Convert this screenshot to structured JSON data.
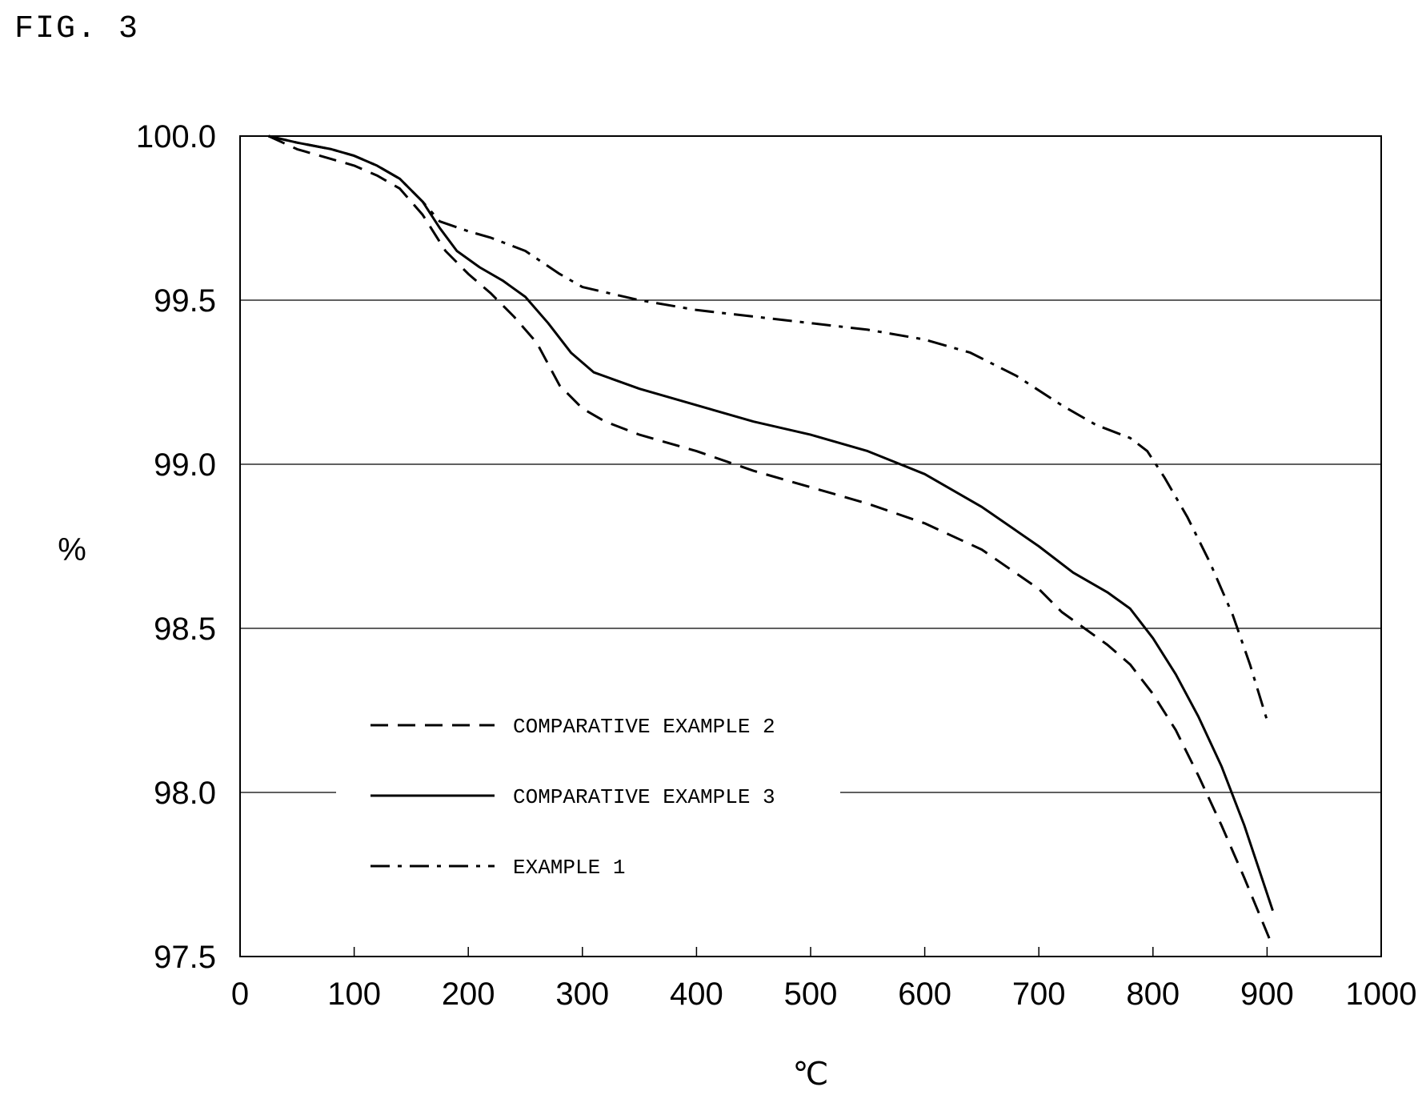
{
  "figure": {
    "label": "FIG. 3"
  },
  "chart_data": {
    "type": "line",
    "title": "",
    "xlabel": "℃",
    "ylabel": "%",
    "xlim": [
      0,
      1000
    ],
    "ylim": [
      97.5,
      100.0
    ],
    "x_ticks": [
      "0",
      "100",
      "200",
      "300",
      "400",
      "500",
      "600",
      "700",
      "800",
      "900",
      "1000"
    ],
    "y_ticks": [
      "97.5",
      "98.0",
      "98.5",
      "99.0",
      "99.5",
      "100.0"
    ],
    "grid": "horizontal",
    "legend_position": "lower-left",
    "series": [
      {
        "name": "COMPARATIVE EXAMPLE 2",
        "style": "dashed",
        "color": "#000000",
        "points": [
          [
            25,
            100.0
          ],
          [
            50,
            99.96
          ],
          [
            80,
            99.93
          ],
          [
            100,
            99.91
          ],
          [
            120,
            99.88
          ],
          [
            140,
            99.84
          ],
          [
            160,
            99.76
          ],
          [
            180,
            99.65
          ],
          [
            200,
            99.58
          ],
          [
            220,
            99.52
          ],
          [
            240,
            99.45
          ],
          [
            260,
            99.37
          ],
          [
            280,
            99.24
          ],
          [
            300,
            99.17
          ],
          [
            320,
            99.13
          ],
          [
            350,
            99.09
          ],
          [
            400,
            99.04
          ],
          [
            450,
            98.98
          ],
          [
            500,
            98.93
          ],
          [
            550,
            98.88
          ],
          [
            600,
            98.82
          ],
          [
            650,
            98.74
          ],
          [
            700,
            98.62
          ],
          [
            720,
            98.55
          ],
          [
            760,
            98.45
          ],
          [
            780,
            98.39
          ],
          [
            800,
            98.3
          ],
          [
            820,
            98.19
          ],
          [
            840,
            98.05
          ],
          [
            860,
            97.9
          ],
          [
            880,
            97.74
          ],
          [
            905,
            97.53
          ]
        ]
      },
      {
        "name": "COMPARATIVE EXAMPLE 3",
        "style": "solid",
        "color": "#000000",
        "points": [
          [
            25,
            100.0
          ],
          [
            50,
            99.98
          ],
          [
            80,
            99.96
          ],
          [
            100,
            99.94
          ],
          [
            120,
            99.91
          ],
          [
            140,
            99.87
          ],
          [
            160,
            99.8
          ],
          [
            175,
            99.72
          ],
          [
            190,
            99.65
          ],
          [
            210,
            99.6
          ],
          [
            230,
            99.56
          ],
          [
            250,
            99.51
          ],
          [
            270,
            99.43
          ],
          [
            290,
            99.34
          ],
          [
            310,
            99.28
          ],
          [
            350,
            99.23
          ],
          [
            400,
            99.18
          ],
          [
            450,
            99.13
          ],
          [
            500,
            99.09
          ],
          [
            550,
            99.04
          ],
          [
            600,
            98.97
          ],
          [
            650,
            98.87
          ],
          [
            700,
            98.75
          ],
          [
            730,
            98.67
          ],
          [
            760,
            98.61
          ],
          [
            780,
            98.56
          ],
          [
            800,
            98.47
          ],
          [
            820,
            98.36
          ],
          [
            840,
            98.23
          ],
          [
            860,
            98.08
          ],
          [
            880,
            97.9
          ],
          [
            905,
            97.64
          ]
        ]
      },
      {
        "name": "EXAMPLE 1",
        "style": "dash-dot",
        "color": "#000000",
        "points": [
          [
            25,
            100.0
          ],
          [
            50,
            99.98
          ],
          [
            80,
            99.96
          ],
          [
            100,
            99.94
          ],
          [
            120,
            99.91
          ],
          [
            140,
            99.87
          ],
          [
            160,
            99.8
          ],
          [
            175,
            99.74
          ],
          [
            200,
            99.71
          ],
          [
            220,
            99.69
          ],
          [
            250,
            99.65
          ],
          [
            280,
            99.58
          ],
          [
            300,
            99.54
          ],
          [
            350,
            99.5
          ],
          [
            400,
            99.47
          ],
          [
            450,
            99.45
          ],
          [
            500,
            99.43
          ],
          [
            550,
            99.41
          ],
          [
            600,
            99.38
          ],
          [
            640,
            99.34
          ],
          [
            680,
            99.27
          ],
          [
            720,
            99.18
          ],
          [
            750,
            99.12
          ],
          [
            780,
            99.08
          ],
          [
            795,
            99.04
          ],
          [
            810,
            98.96
          ],
          [
            830,
            98.84
          ],
          [
            850,
            98.7
          ],
          [
            870,
            98.54
          ],
          [
            885,
            98.39
          ],
          [
            900,
            98.22
          ]
        ]
      }
    ]
  }
}
